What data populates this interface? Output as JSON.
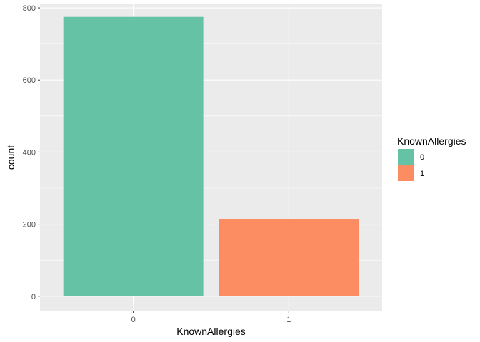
{
  "chart_data": {
    "type": "bar",
    "categories": [
      "0",
      "1"
    ],
    "values": [
      775,
      213
    ],
    "xlabel": "KnownAllergies",
    "ylabel": "count",
    "ylim": [
      0,
      810
    ],
    "yticks": [
      0,
      200,
      400,
      600,
      800
    ],
    "grid": true,
    "legend": {
      "title": "KnownAllergies",
      "placement": "right",
      "entries": [
        {
          "label": "0",
          "color": "#66c2a5"
        },
        {
          "label": "1",
          "color": "#fc8d62"
        }
      ]
    },
    "colors": [
      "#66c2a5",
      "#fc8d62"
    ],
    "panel_background": "#ebebeb",
    "grid_color": "#ffffff"
  }
}
